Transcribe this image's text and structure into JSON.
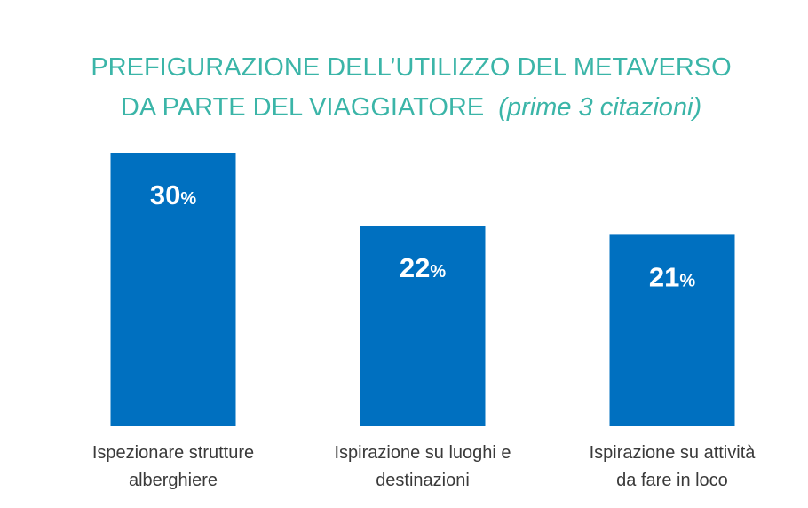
{
  "chart_data": {
    "type": "bar",
    "title_line1": "PREFIGURAZIONE DELL’UTILIZZO DEL METAVERSO",
    "title_line2": "DA PARTE DEL VIAGGIATORE",
    "subtitle": "(prime 3 citazioni)",
    "categories": [
      [
        "Ispezionare strutture",
        "alberghiere"
      ],
      [
        "Ispirazione su luoghi e",
        "destinazioni"
      ],
      [
        "Ispirazione su attività",
        "da fare in loco"
      ]
    ],
    "values": [
      30,
      22,
      21
    ],
    "value_suffix": "%",
    "ylim": [
      0,
      30
    ],
    "bar_color": "#0070c0",
    "title_color": "#3bb5a8",
    "grid": false
  }
}
